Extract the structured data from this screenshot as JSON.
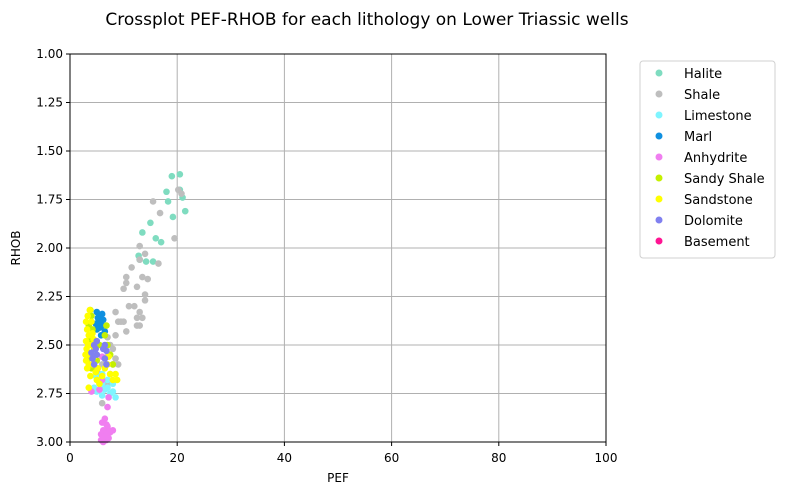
{
  "chart_data": {
    "type": "scatter",
    "title": "Crossplot PEF-RHOB for each lithology on Lower Triassic wells",
    "xlabel": "PEF",
    "ylabel": "RHOB",
    "xlim": [
      0,
      100
    ],
    "ylim": [
      3.0,
      1.0
    ],
    "y_inverted": true,
    "grid": true,
    "legend_position": "outside-right",
    "x_ticks": [
      0,
      20,
      40,
      60,
      80,
      100
    ],
    "x_tick_labels": [
      "0",
      "20",
      "40",
      "60",
      "80",
      "100"
    ],
    "y_ticks": [
      1.0,
      1.25,
      1.5,
      1.75,
      2.0,
      2.25,
      2.5,
      2.75,
      3.0
    ],
    "y_tick_labels": [
      "1.00",
      "1.25",
      "1.50",
      "1.75",
      "2.00",
      "2.25",
      "2.50",
      "2.75",
      "3.00"
    ],
    "series": [
      {
        "name": "Halite",
        "color": "#7fdcc0",
        "points": [
          [
            19.0,
            1.63
          ],
          [
            20.5,
            1.62
          ],
          [
            18.0,
            1.71
          ],
          [
            18.3,
            1.76
          ],
          [
            21.0,
            1.74
          ],
          [
            19.2,
            1.84
          ],
          [
            21.5,
            1.81
          ],
          [
            15.0,
            1.87
          ],
          [
            13.5,
            1.92
          ],
          [
            17.0,
            1.97
          ],
          [
            13.0,
            2.06
          ],
          [
            14.2,
            2.07
          ],
          [
            15.5,
            2.07
          ],
          [
            12.8,
            2.04
          ],
          [
            20.5,
            1.7
          ],
          [
            16.0,
            1.95
          ]
        ]
      },
      {
        "name": "Shale",
        "color": "#bebebe",
        "points": [
          [
            20.2,
            1.7
          ],
          [
            20.8,
            1.72
          ],
          [
            15.5,
            1.76
          ],
          [
            16.8,
            1.82
          ],
          [
            19.5,
            1.95
          ],
          [
            13.0,
            1.99
          ],
          [
            14.0,
            2.03
          ],
          [
            13.0,
            2.06
          ],
          [
            16.5,
            2.08
          ],
          [
            11.5,
            2.1
          ],
          [
            10.5,
            2.15
          ],
          [
            13.5,
            2.15
          ],
          [
            14.5,
            2.16
          ],
          [
            10.5,
            2.18
          ],
          [
            12.5,
            2.2
          ],
          [
            10.0,
            2.21
          ],
          [
            14.0,
            2.24
          ],
          [
            14.0,
            2.27
          ],
          [
            11.0,
            2.3
          ],
          [
            12.0,
            2.3
          ],
          [
            13.0,
            2.33
          ],
          [
            12.5,
            2.36
          ],
          [
            13.5,
            2.36
          ],
          [
            9.0,
            2.38
          ],
          [
            10.0,
            2.38
          ],
          [
            13.0,
            2.4
          ],
          [
            10.5,
            2.43
          ],
          [
            8.5,
            2.45
          ],
          [
            8.0,
            2.52
          ],
          [
            8.5,
            2.57
          ],
          [
            8.0,
            2.6
          ],
          [
            7.5,
            2.65
          ],
          [
            7.0,
            2.7
          ],
          [
            6.5,
            2.72
          ],
          [
            8.5,
            2.33
          ],
          [
            9.5,
            2.38
          ],
          [
            12.5,
            2.4
          ],
          [
            7.5,
            2.5
          ],
          [
            7.0,
            2.56
          ],
          [
            9.0,
            2.6
          ],
          [
            6.0,
            2.8
          ],
          [
            5.5,
            2.65
          ],
          [
            6.0,
            2.6
          ],
          [
            7.0,
            2.46
          ]
        ]
      },
      {
        "name": "Limestone",
        "color": "#7ff5ff",
        "points": [
          [
            5.0,
            2.62
          ],
          [
            5.5,
            2.67
          ],
          [
            6.0,
            2.7
          ],
          [
            7.0,
            2.72
          ],
          [
            7.5,
            2.75
          ],
          [
            8.0,
            2.74
          ],
          [
            8.5,
            2.77
          ],
          [
            4.5,
            2.72
          ],
          [
            5.0,
            2.74
          ],
          [
            6.5,
            2.73
          ],
          [
            7.0,
            2.68
          ],
          [
            6.0,
            2.65
          ],
          [
            5.5,
            2.7
          ],
          [
            8.0,
            2.7
          ],
          [
            6.0,
            2.76
          ],
          [
            4.8,
            2.66
          ]
        ]
      },
      {
        "name": "Marl",
        "color": "#1090e0",
        "points": [
          [
            5.0,
            2.33
          ],
          [
            5.5,
            2.35
          ],
          [
            6.0,
            2.34
          ],
          [
            5.5,
            2.38
          ],
          [
            6.0,
            2.4
          ],
          [
            5.0,
            2.42
          ],
          [
            6.5,
            2.43
          ],
          [
            5.8,
            2.45
          ],
          [
            5.2,
            2.36
          ],
          [
            4.8,
            2.39
          ],
          [
            6.2,
            2.37
          ],
          [
            5.6,
            2.41
          ]
        ]
      },
      {
        "name": "Anhydrite",
        "color": "#f07ef0",
        "points": [
          [
            6.5,
            2.88
          ],
          [
            6.0,
            2.9
          ],
          [
            6.8,
            2.91
          ],
          [
            7.0,
            2.93
          ],
          [
            6.2,
            2.94
          ],
          [
            5.8,
            2.96
          ],
          [
            6.5,
            2.97
          ],
          [
            6.8,
            2.99
          ],
          [
            6.2,
            3.0
          ],
          [
            7.2,
            2.98
          ],
          [
            7.5,
            2.95
          ],
          [
            7.0,
            2.82
          ],
          [
            7.2,
            2.77
          ],
          [
            5.5,
            2.73
          ],
          [
            6.0,
            2.68
          ],
          [
            4.0,
            2.74
          ],
          [
            5.0,
            2.62
          ],
          [
            6.0,
            2.56
          ],
          [
            7.0,
            2.92
          ],
          [
            8.0,
            2.94
          ],
          [
            5.8,
            2.99
          ],
          [
            6.9,
            2.96
          ]
        ]
      },
      {
        "name": "Sandy Shale",
        "color": "#c4f000",
        "points": [
          [
            3.8,
            2.32
          ],
          [
            4.0,
            2.35
          ],
          [
            3.5,
            2.4
          ],
          [
            4.2,
            2.42
          ],
          [
            3.8,
            2.47
          ],
          [
            4.5,
            2.52
          ],
          [
            3.5,
            2.55
          ],
          [
            5.0,
            2.58
          ],
          [
            4.0,
            2.62
          ],
          [
            6.5,
            2.45
          ],
          [
            7.0,
            2.5
          ],
          [
            7.5,
            2.55
          ],
          [
            8.0,
            2.6
          ],
          [
            6.8,
            2.4
          ],
          [
            5.5,
            2.5
          ],
          [
            3.2,
            2.58
          ]
        ]
      },
      {
        "name": "Sandstone",
        "color": "#ffff00",
        "points": [
          [
            3.0,
            2.38
          ],
          [
            3.2,
            2.42
          ],
          [
            3.5,
            2.45
          ],
          [
            3.0,
            2.48
          ],
          [
            3.4,
            2.5
          ],
          [
            3.1,
            2.52
          ],
          [
            3.6,
            2.55
          ],
          [
            3.0,
            2.58
          ],
          [
            3.5,
            2.6
          ],
          [
            3.2,
            2.62
          ],
          [
            4.0,
            2.38
          ],
          [
            4.2,
            2.44
          ],
          [
            4.0,
            2.5
          ],
          [
            4.5,
            2.56
          ],
          [
            4.2,
            2.6
          ],
          [
            4.8,
            2.64
          ],
          [
            5.0,
            2.68
          ],
          [
            5.5,
            2.7
          ],
          [
            3.8,
            2.66
          ],
          [
            3.5,
            2.72
          ],
          [
            7.0,
            2.6
          ],
          [
            7.5,
            2.65
          ],
          [
            8.0,
            2.68
          ],
          [
            8.5,
            2.65
          ],
          [
            8.8,
            2.68
          ],
          [
            6.5,
            2.62
          ],
          [
            7.2,
            2.56
          ],
          [
            3.3,
            2.35
          ],
          [
            3.7,
            2.32
          ],
          [
            4.4,
            2.47
          ],
          [
            2.9,
            2.55
          ],
          [
            4.6,
            2.52
          ],
          [
            5.2,
            2.62
          ],
          [
            6.0,
            2.66
          ]
        ]
      },
      {
        "name": "Dolomite",
        "color": "#8080f0",
        "points": [
          [
            4.5,
            2.5
          ],
          [
            4.8,
            2.52
          ],
          [
            5.0,
            2.55
          ],
          [
            4.2,
            2.57
          ],
          [
            4.5,
            2.6
          ],
          [
            6.5,
            2.5
          ],
          [
            6.8,
            2.53
          ],
          [
            6.5,
            2.57
          ],
          [
            6.2,
            2.52
          ],
          [
            5.0,
            2.48
          ],
          [
            4.0,
            2.54
          ],
          [
            6.8,
            2.6
          ]
        ]
      },
      {
        "name": "Basement",
        "color": "#ff1493",
        "points": []
      }
    ]
  }
}
